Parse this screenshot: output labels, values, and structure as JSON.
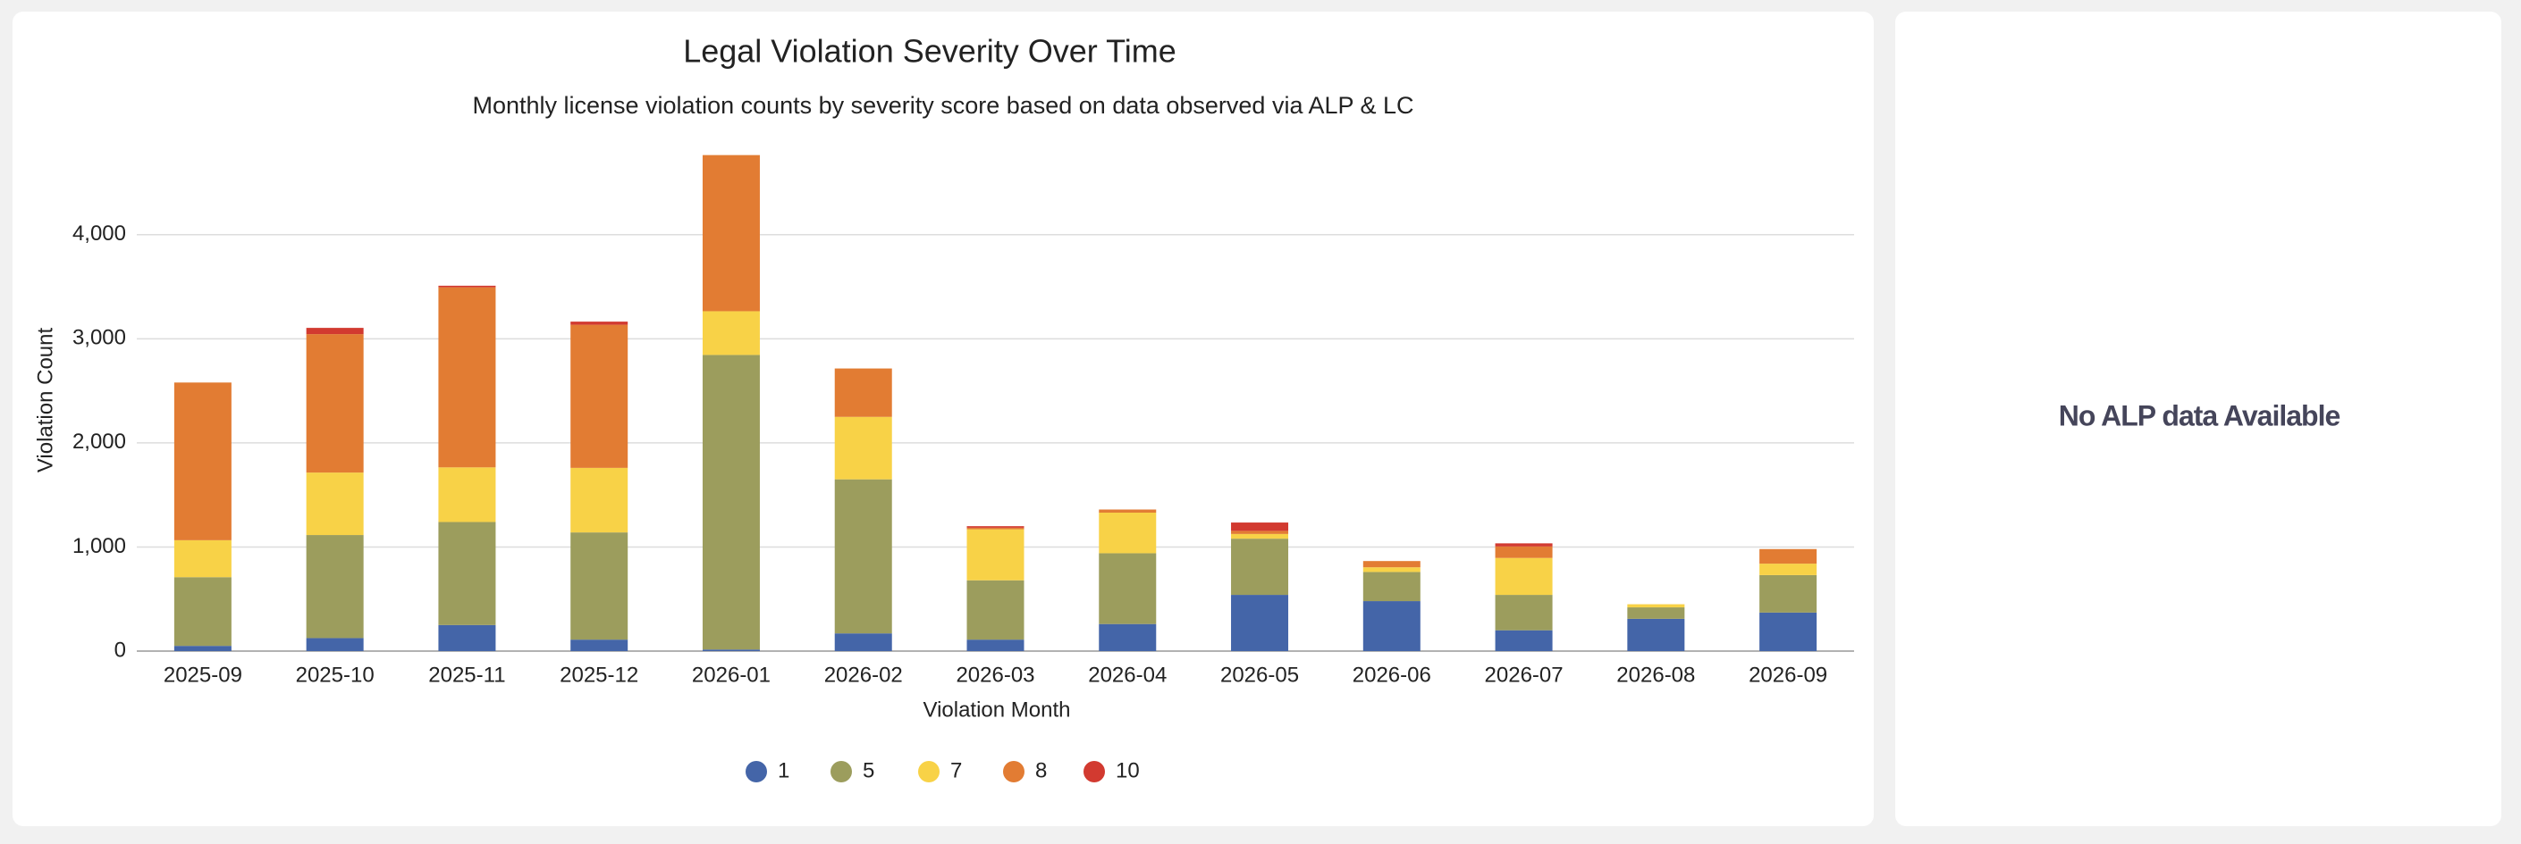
{
  "chart_data": {
    "type": "stacked-bar",
    "title": "Legal Violation Severity Over Time",
    "subtitle": "Monthly license violation counts by severity score based on data observed via ALP & LC",
    "x_label": "Violation Month",
    "y_label": "Violation Count",
    "categories": [
      "2025-09",
      "2025-10",
      "2025-11",
      "2025-12",
      "2026-01",
      "2026-02",
      "2026-03",
      "2026-04",
      "2026-05",
      "2026-06",
      "2026-07",
      "2026-08",
      "2026-09"
    ],
    "series": [
      {
        "name": "1",
        "color": "#4465a8",
        "values": [
          50,
          125,
          250,
          110,
          15,
          170,
          110,
          260,
          540,
          480,
          200,
          310,
          370
        ]
      },
      {
        "name": "5",
        "color": "#9c9d5d",
        "values": [
          660,
          990,
          990,
          1030,
          2830,
          1480,
          570,
          680,
          540,
          280,
          340,
          110,
          360
        ]
      },
      {
        "name": "7",
        "color": "#f8d247",
        "values": [
          355,
          600,
          525,
          620,
          420,
          600,
          490,
          390,
          45,
          45,
          355,
          30,
          110
        ]
      },
      {
        "name": "8",
        "color": "#e27c33",
        "values": [
          1515,
          1330,
          1730,
          1375,
          1500,
          465,
          15,
          30,
          30,
          60,
          110,
          0,
          140
        ]
      },
      {
        "name": "10",
        "color": "#d23a30",
        "values": [
          0,
          60,
          15,
          30,
          0,
          0,
          15,
          0,
          80,
          0,
          30,
          0,
          0
        ]
      }
    ],
    "ylim": [
      0,
      4800
    ],
    "yticks": [
      0,
      {
        "value": 1000,
        "label": "1,000"
      },
      {
        "value": 2000,
        "label": "2,000"
      },
      {
        "value": 3000,
        "label": "3,000"
      },
      {
        "value": 4000,
        "label": "4,000"
      }
    ],
    "grid": true,
    "legend": "bottom"
  },
  "side_panel": {
    "message": "No ALP data Available"
  }
}
